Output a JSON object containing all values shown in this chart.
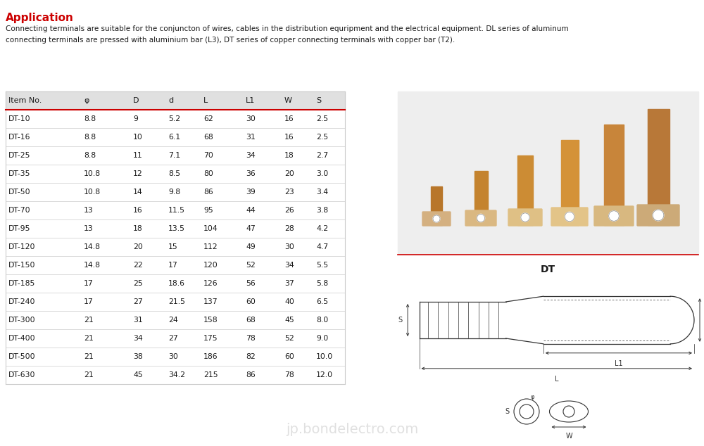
{
  "title": "Application",
  "title_color": "#cc0000",
  "line1": "Connecting terminals are suitable for the conjuncton of wires, cables in the distribution equripment and the electrical equipment. DL series of aluminum",
  "line2": "connecting terminals are pressed with aluminium bar (L3), DT series of copper connecting terminals with copper bar (T2).",
  "table_headers": [
    "Item No.",
    "φ",
    "D",
    "d",
    "L",
    "L1",
    "W",
    "S"
  ],
  "table_data": [
    [
      "DT-10",
      "8.8",
      "9",
      "5.2",
      "62",
      "30",
      "16",
      "2.5"
    ],
    [
      "DT-16",
      "8.8",
      "10",
      "6.1",
      "68",
      "31",
      "16",
      "2.5"
    ],
    [
      "DT-25",
      "8.8",
      "11",
      "7.1",
      "70",
      "34",
      "18",
      "2.7"
    ],
    [
      "DT-35",
      "10.8",
      "12",
      "8.5",
      "80",
      "36",
      "20",
      "3.0"
    ],
    [
      "DT-50",
      "10.8",
      "14",
      "9.8",
      "86",
      "39",
      "23",
      "3.4"
    ],
    [
      "DT-70",
      "13",
      "16",
      "11.5",
      "95",
      "44",
      "26",
      "3.8"
    ],
    [
      "DT-95",
      "13",
      "18",
      "13.5",
      "104",
      "47",
      "28",
      "4.2"
    ],
    [
      "DT-120",
      "14.8",
      "20",
      "15",
      "112",
      "49",
      "30",
      "4.7"
    ],
    [
      "DT-150",
      "14.8",
      "22",
      "17",
      "120",
      "52",
      "34",
      "5.5"
    ],
    [
      "DT-185",
      "17",
      "25",
      "18.6",
      "126",
      "56",
      "37",
      "5.8"
    ],
    [
      "DT-240",
      "17",
      "27",
      "21.5",
      "137",
      "60",
      "40",
      "6.5"
    ],
    [
      "DT-300",
      "21",
      "31",
      "24",
      "158",
      "68",
      "45",
      "8.0"
    ],
    [
      "DT-400",
      "21",
      "34",
      "27",
      "175",
      "78",
      "52",
      "9.0"
    ],
    [
      "DT-500",
      "21",
      "38",
      "30",
      "186",
      "82",
      "60",
      "10.0"
    ],
    [
      "DT-630",
      "21",
      "45",
      "34.2",
      "215",
      "86",
      "78",
      "12.0"
    ]
  ],
  "header_bg": "#e0e0e0",
  "row_bg_white": "#ffffff",
  "header_line_color": "#cc0000",
  "table_border_color": "#cccccc",
  "text_color": "#1a1a1a",
  "image_label": "DT",
  "background_color": "#ffffff",
  "photo_bg": "#eeeeee",
  "draw_line_color": "#333333"
}
